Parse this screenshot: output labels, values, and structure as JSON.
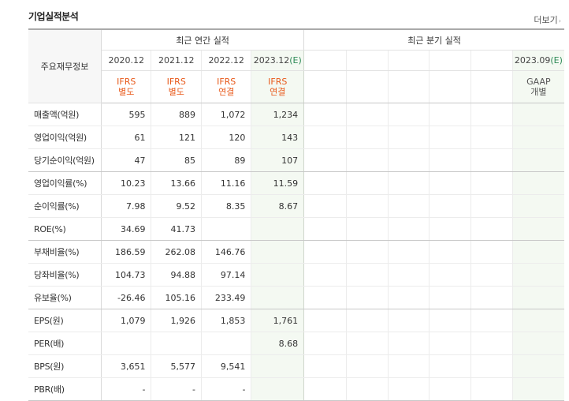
{
  "header": {
    "title": "기업실적분석",
    "more_label": "더보기",
    "more_arrow": "›"
  },
  "table": {
    "corner_label": "주요재무정보",
    "annual_title": "최근 연간 실적",
    "quarter_title": "최근 분기 실적",
    "annual_periods": [
      {
        "label": "2020.12",
        "est": "",
        "std1": "IFRS",
        "std2": "별도"
      },
      {
        "label": "2021.12",
        "est": "",
        "std1": "IFRS",
        "std2": "별도"
      },
      {
        "label": "2022.12",
        "est": "",
        "std1": "IFRS",
        "std2": "연결"
      },
      {
        "label": "2023.12",
        "est": "(E)",
        "std1": "IFRS",
        "std2": "연결"
      }
    ],
    "quarter_periods": [
      {
        "label": "",
        "est": "",
        "std1": "",
        "std2": ""
      },
      {
        "label": "",
        "est": "",
        "std1": "",
        "std2": ""
      },
      {
        "label": "",
        "est": "",
        "std1": "",
        "std2": ""
      },
      {
        "label": "",
        "est": "",
        "std1": "",
        "std2": ""
      },
      {
        "label": "",
        "est": "",
        "std1": "",
        "std2": ""
      },
      {
        "label": "2023.09",
        "est": "(E)",
        "std1": "GAAP",
        "std2": "개별"
      }
    ],
    "rows": [
      {
        "label": "매출액(억원)",
        "values": [
          "595",
          "889",
          "1,072",
          "1,234"
        ]
      },
      {
        "label": "영업이익(억원)",
        "values": [
          "61",
          "121",
          "120",
          "143"
        ]
      },
      {
        "label": "당기순이익(억원)",
        "values": [
          "47",
          "85",
          "89",
          "107"
        ]
      },
      {
        "label": "영업이익률(%)",
        "values": [
          "10.23",
          "13.66",
          "11.16",
          "11.59"
        ]
      },
      {
        "label": "순이익률(%)",
        "values": [
          "7.98",
          "9.52",
          "8.35",
          "8.67"
        ]
      },
      {
        "label": "ROE(%)",
        "values": [
          "34.69",
          "41.73",
          "",
          ""
        ]
      },
      {
        "label": "부채비율(%)",
        "values": [
          "186.59",
          "262.08",
          "146.76",
          ""
        ]
      },
      {
        "label": "당좌비율(%)",
        "values": [
          "104.73",
          "94.88",
          "97.14",
          ""
        ]
      },
      {
        "label": "유보율(%)",
        "values": [
          "-26.46",
          "105.16",
          "233.49",
          ""
        ]
      },
      {
        "label": "EPS(원)",
        "values": [
          "1,079",
          "1,926",
          "1,853",
          "1,761"
        ]
      },
      {
        "label": "PER(배)",
        "values": [
          "",
          "",
          "",
          "8.68"
        ]
      },
      {
        "label": "BPS(원)",
        "values": [
          "3,651",
          "5,577",
          "9,541",
          ""
        ]
      },
      {
        "label": "PBR(배)",
        "values": [
          "-",
          "-",
          "-",
          ""
        ]
      }
    ]
  },
  "colors": {
    "estimate_green": "#2e8b57",
    "ifrs_orange": "#e8591a",
    "negative_red": "#e02b2b",
    "estimate_col_bg": "#f4f9f2"
  }
}
